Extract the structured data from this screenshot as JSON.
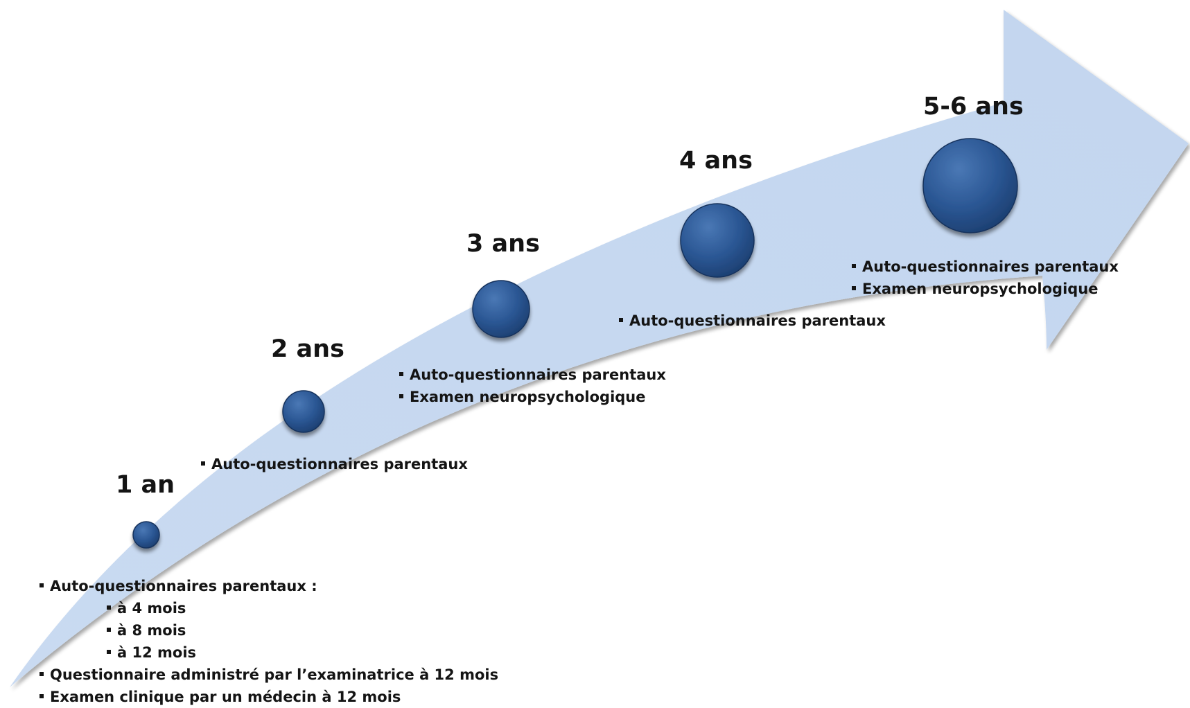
{
  "colors": {
    "arrow_fill": "#c6d8f0",
    "node_fill": "#2b5794",
    "node_highlight": "#4a78b5",
    "node_shadow": "#16325c",
    "text": "#141414"
  },
  "stages": [
    {
      "title": "1 an",
      "items": [
        {
          "text": "Auto-questionnaires parentaux :",
          "sub": [
            {
              "text": "à 4 mois"
            },
            {
              "text": "à 8 mois"
            },
            {
              "text": "à 12 mois"
            }
          ]
        },
        {
          "text": "Questionnaire administré par l’examinatrice à 12 mois"
        },
        {
          "text": "Examen clinique par un médecin à 12 mois"
        }
      ]
    },
    {
      "title": "2 ans",
      "items": [
        {
          "text": "Auto-questionnaires parentaux"
        }
      ]
    },
    {
      "title": "3 ans",
      "items": [
        {
          "text": "Auto-questionnaires parentaux"
        },
        {
          "text": "Examen neuropsychologique"
        }
      ]
    },
    {
      "title": "4 ans",
      "items": [
        {
          "text": "Auto-questionnaires parentaux"
        }
      ]
    },
    {
      "title": "5-6 ans",
      "items": [
        {
          "text": "Auto-questionnaires parentaux"
        },
        {
          "text": "Examen neuropsychologique"
        }
      ]
    }
  ]
}
